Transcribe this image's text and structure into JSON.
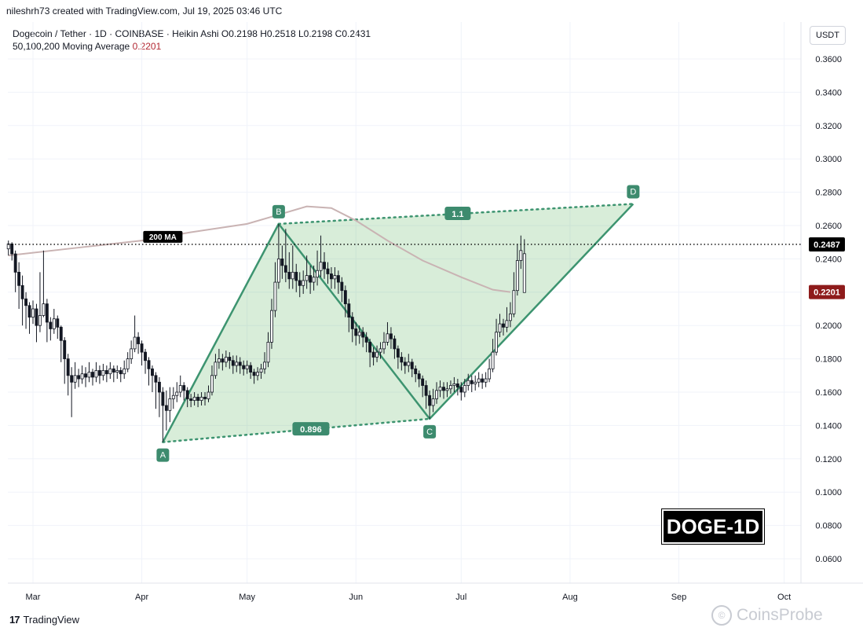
{
  "header": {
    "meta": "nileshrh73 created with TradingView.com, Jul 19, 2025 03:46 UTC",
    "symbol_line": "Dogecoin / Tether · 1D · COINBASE · Heikin Ashi",
    "ohlc": "O0.2198  H0.2518  L0.2198  C0.2431",
    "ma_label": "50,100,200 Moving Average",
    "ma_value": "0.2201",
    "currency": "USDT"
  },
  "badge": "DOGE-1D",
  "footer": {
    "logo_mark": "17",
    "logo_text": "TradingView"
  },
  "watermark": {
    "icon": "copyright-icon",
    "text": "CoinsProbe"
  },
  "colors": {
    "up": "#26a69a",
    "down": "#1e222d",
    "candle": "#131722",
    "pattern_fill": "rgba(76,175,80,0.22)",
    "pattern_line": "#3d9470",
    "ma": "#c9b3b3",
    "last_price_bg": "#000000",
    "ma_tag_bg": "#8e1b1b"
  },
  "chart_data": {
    "type": "candlestick",
    "title": "Dogecoin / Tether · 1D · COINBASE · Heikin Ashi",
    "ylim": [
      0.05,
      0.37
    ],
    "y_ticks": [
      "0.3600",
      "0.3400",
      "0.3200",
      "0.3000",
      "0.2800",
      "0.2600",
      "0.2400",
      "0.2200",
      "0.2000",
      "0.1800",
      "0.1600",
      "0.1400",
      "0.1200",
      "0.1000",
      "0.0800",
      "0.0600"
    ],
    "x_ticks": [
      "Mar",
      "Apr",
      "May",
      "Jun",
      "Jul",
      "Aug",
      "Sep",
      "Oct"
    ],
    "x_tick_dates": [
      "2025-03-01",
      "2025-04-01",
      "2025-05-01",
      "2025-06-01",
      "2025-07-01",
      "2025-08-01",
      "2025-09-01",
      "2025-10-01"
    ],
    "date_range": [
      "2025-02-22",
      "2025-10-05"
    ],
    "last_price": "0.2487",
    "last_price_value": 0.2487,
    "ma_tag": "0.2201",
    "ma_tag_value": 0.2201,
    "ma_line_label": "200 MA",
    "ma_200": [
      [
        "2025-02-22",
        0.242
      ],
      [
        "2025-03-15",
        0.247
      ],
      [
        "2025-04-01",
        0.251
      ],
      [
        "2025-04-15",
        0.256
      ],
      [
        "2025-05-01",
        0.261
      ],
      [
        "2025-05-10",
        0.2665
      ],
      [
        "2025-05-18",
        0.2715
      ],
      [
        "2025-05-25",
        0.2705
      ],
      [
        "2025-06-01",
        0.263
      ],
      [
        "2025-06-10",
        0.251
      ],
      [
        "2025-06-20",
        0.239
      ],
      [
        "2025-07-01",
        0.229
      ],
      [
        "2025-07-10",
        0.2215
      ],
      [
        "2025-07-15",
        0.2201
      ]
    ],
    "pattern": {
      "points": [
        {
          "label": "A",
          "date": "2025-04-07",
          "value": 0.13
        },
        {
          "label": "B",
          "date": "2025-05-10",
          "value": 0.261
        },
        {
          "label": "C",
          "date": "2025-06-22",
          "value": 0.144
        },
        {
          "label": "D",
          "date": "2025-08-19",
          "value": 0.273
        }
      ],
      "ratio_ac": "0.896",
      "ratio_bd": "1.1"
    },
    "candles": [
      [
        "2025-02-22",
        0.246,
        0.249,
        0.251,
        0.242
      ],
      [
        "2025-02-23",
        0.249,
        0.243,
        0.25,
        0.239
      ],
      [
        "2025-02-24",
        0.243,
        0.232,
        0.245,
        0.22
      ],
      [
        "2025-02-25",
        0.232,
        0.224,
        0.238,
        0.21
      ],
      [
        "2025-02-26",
        0.224,
        0.216,
        0.23,
        0.2
      ],
      [
        "2025-02-27",
        0.216,
        0.212,
        0.22,
        0.198
      ],
      [
        "2025-02-28",
        0.212,
        0.205,
        0.214,
        0.195
      ],
      [
        "2025-03-01",
        0.205,
        0.21,
        0.215,
        0.201
      ],
      [
        "2025-03-02",
        0.21,
        0.2,
        0.213,
        0.19
      ],
      [
        "2025-03-03",
        0.2,
        0.206,
        0.232,
        0.196
      ],
      [
        "2025-03-04",
        0.206,
        0.213,
        0.245,
        0.205
      ],
      [
        "2025-03-05",
        0.213,
        0.202,
        0.216,
        0.19
      ],
      [
        "2025-03-06",
        0.202,
        0.198,
        0.205,
        0.191
      ],
      [
        "2025-03-07",
        0.198,
        0.204,
        0.21,
        0.195
      ],
      [
        "2025-03-08",
        0.204,
        0.199,
        0.206,
        0.192
      ],
      [
        "2025-03-09",
        0.199,
        0.191,
        0.2,
        0.178
      ],
      [
        "2025-03-10",
        0.191,
        0.18,
        0.193,
        0.165
      ],
      [
        "2025-03-11",
        0.18,
        0.17,
        0.183,
        0.158
      ],
      [
        "2025-03-12",
        0.17,
        0.166,
        0.175,
        0.145
      ],
      [
        "2025-03-13",
        0.166,
        0.17,
        0.178,
        0.162
      ],
      [
        "2025-03-14",
        0.17,
        0.168,
        0.174,
        0.163
      ],
      [
        "2025-03-15",
        0.168,
        0.171,
        0.176,
        0.165
      ],
      [
        "2025-03-16",
        0.171,
        0.169,
        0.175,
        0.163
      ],
      [
        "2025-03-17",
        0.169,
        0.172,
        0.178,
        0.166
      ],
      [
        "2025-03-18",
        0.172,
        0.169,
        0.174,
        0.164
      ],
      [
        "2025-03-19",
        0.169,
        0.173,
        0.178,
        0.166
      ],
      [
        "2025-03-20",
        0.173,
        0.17,
        0.176,
        0.165
      ],
      [
        "2025-03-21",
        0.17,
        0.173,
        0.177,
        0.167
      ],
      [
        "2025-03-22",
        0.173,
        0.171,
        0.176,
        0.166
      ],
      [
        "2025-03-23",
        0.171,
        0.174,
        0.178,
        0.168
      ],
      [
        "2025-03-24",
        0.174,
        0.172,
        0.176,
        0.166
      ],
      [
        "2025-03-25",
        0.172,
        0.173,
        0.176,
        0.168
      ],
      [
        "2025-03-26",
        0.173,
        0.171,
        0.175,
        0.166
      ],
      [
        "2025-03-27",
        0.171,
        0.174,
        0.179,
        0.168
      ],
      [
        "2025-03-28",
        0.174,
        0.18,
        0.184,
        0.172
      ],
      [
        "2025-03-29",
        0.18,
        0.186,
        0.191,
        0.177
      ],
      [
        "2025-03-30",
        0.186,
        0.193,
        0.206,
        0.184
      ],
      [
        "2025-03-31",
        0.193,
        0.189,
        0.196,
        0.183
      ],
      [
        "2025-04-01",
        0.189,
        0.184,
        0.191,
        0.176
      ],
      [
        "2025-04-02",
        0.184,
        0.179,
        0.186,
        0.171
      ],
      [
        "2025-04-03",
        0.179,
        0.174,
        0.181,
        0.164
      ],
      [
        "2025-04-04",
        0.174,
        0.17,
        0.176,
        0.16
      ],
      [
        "2025-04-05",
        0.17,
        0.166,
        0.172,
        0.15
      ],
      [
        "2025-04-06",
        0.166,
        0.16,
        0.169,
        0.145
      ],
      [
        "2025-04-07",
        0.16,
        0.152,
        0.163,
        0.13
      ],
      [
        "2025-04-08",
        0.152,
        0.149,
        0.161,
        0.137
      ],
      [
        "2025-04-09",
        0.149,
        0.156,
        0.163,
        0.142
      ],
      [
        "2025-04-10",
        0.156,
        0.158,
        0.163,
        0.15
      ],
      [
        "2025-04-11",
        0.158,
        0.16,
        0.166,
        0.154
      ],
      [
        "2025-04-12",
        0.16,
        0.164,
        0.17,
        0.157
      ],
      [
        "2025-04-13",
        0.164,
        0.161,
        0.166,
        0.155
      ],
      [
        "2025-04-14",
        0.161,
        0.156,
        0.163,
        0.151
      ],
      [
        "2025-04-15",
        0.156,
        0.155,
        0.159,
        0.151
      ],
      [
        "2025-04-16",
        0.155,
        0.157,
        0.16,
        0.152
      ],
      [
        "2025-04-17",
        0.157,
        0.155,
        0.159,
        0.151
      ],
      [
        "2025-04-18",
        0.155,
        0.157,
        0.16,
        0.152
      ],
      [
        "2025-04-19",
        0.157,
        0.156,
        0.16,
        0.152
      ],
      [
        "2025-04-20",
        0.156,
        0.16,
        0.164,
        0.154
      ],
      [
        "2025-04-21",
        0.16,
        0.17,
        0.176,
        0.158
      ],
      [
        "2025-04-22",
        0.17,
        0.178,
        0.183,
        0.168
      ],
      [
        "2025-04-23",
        0.178,
        0.18,
        0.186,
        0.174
      ],
      [
        "2025-04-24",
        0.18,
        0.178,
        0.183,
        0.173
      ],
      [
        "2025-04-25",
        0.178,
        0.181,
        0.185,
        0.175
      ],
      [
        "2025-04-26",
        0.181,
        0.179,
        0.184,
        0.174
      ],
      [
        "2025-04-27",
        0.179,
        0.176,
        0.182,
        0.171
      ],
      [
        "2025-04-28",
        0.176,
        0.178,
        0.182,
        0.172
      ],
      [
        "2025-04-29",
        0.178,
        0.176,
        0.181,
        0.171
      ],
      [
        "2025-04-30",
        0.176,
        0.174,
        0.179,
        0.17
      ],
      [
        "2025-05-01",
        0.174,
        0.176,
        0.179,
        0.171
      ],
      [
        "2025-05-02",
        0.176,
        0.172,
        0.178,
        0.168
      ],
      [
        "2025-05-03",
        0.172,
        0.17,
        0.174,
        0.165
      ],
      [
        "2025-05-04",
        0.17,
        0.172,
        0.175,
        0.167
      ],
      [
        "2025-05-05",
        0.172,
        0.174,
        0.177,
        0.168
      ],
      [
        "2025-05-06",
        0.174,
        0.178,
        0.184,
        0.171
      ],
      [
        "2025-05-07",
        0.178,
        0.19,
        0.196,
        0.175
      ],
      [
        "2025-05-08",
        0.19,
        0.209,
        0.216,
        0.186
      ],
      [
        "2025-05-09",
        0.209,
        0.226,
        0.238,
        0.205
      ],
      [
        "2025-05-10",
        0.226,
        0.24,
        0.261,
        0.222
      ],
      [
        "2025-05-11",
        0.24,
        0.236,
        0.248,
        0.228
      ],
      [
        "2025-05-12",
        0.236,
        0.232,
        0.258,
        0.226
      ],
      [
        "2025-05-13",
        0.232,
        0.228,
        0.244,
        0.222
      ],
      [
        "2025-05-14",
        0.228,
        0.232,
        0.248,
        0.222
      ],
      [
        "2025-05-15",
        0.232,
        0.227,
        0.237,
        0.22
      ],
      [
        "2025-05-16",
        0.227,
        0.224,
        0.232,
        0.217
      ],
      [
        "2025-05-17",
        0.224,
        0.227,
        0.233,
        0.219
      ],
      [
        "2025-05-18",
        0.227,
        0.23,
        0.242,
        0.222
      ],
      [
        "2025-05-19",
        0.23,
        0.226,
        0.236,
        0.219
      ],
      [
        "2025-05-20",
        0.226,
        0.229,
        0.236,
        0.221
      ],
      [
        "2025-05-21",
        0.229,
        0.233,
        0.245,
        0.224
      ],
      [
        "2025-05-22",
        0.233,
        0.238,
        0.254,
        0.229
      ],
      [
        "2025-05-23",
        0.238,
        0.234,
        0.244,
        0.228
      ],
      [
        "2025-05-24",
        0.234,
        0.231,
        0.238,
        0.225
      ],
      [
        "2025-05-25",
        0.231,
        0.228,
        0.235,
        0.222
      ],
      [
        "2025-05-26",
        0.228,
        0.23,
        0.235,
        0.222
      ],
      [
        "2025-05-27",
        0.23,
        0.226,
        0.233,
        0.219
      ],
      [
        "2025-05-28",
        0.226,
        0.221,
        0.229,
        0.214
      ],
      [
        "2025-05-29",
        0.221,
        0.213,
        0.224,
        0.205
      ],
      [
        "2025-05-30",
        0.213,
        0.205,
        0.216,
        0.196
      ],
      [
        "2025-05-31",
        0.205,
        0.198,
        0.208,
        0.19
      ],
      [
        "2025-06-01",
        0.198,
        0.194,
        0.202,
        0.188
      ],
      [
        "2025-06-02",
        0.194,
        0.196,
        0.2,
        0.189
      ],
      [
        "2025-06-03",
        0.196,
        0.193,
        0.199,
        0.187
      ],
      [
        "2025-06-04",
        0.193,
        0.19,
        0.196,
        0.184
      ],
      [
        "2025-06-05",
        0.19,
        0.184,
        0.192,
        0.175
      ],
      [
        "2025-06-06",
        0.184,
        0.181,
        0.187,
        0.176
      ],
      [
        "2025-06-07",
        0.181,
        0.184,
        0.188,
        0.178
      ],
      [
        "2025-06-08",
        0.184,
        0.186,
        0.19,
        0.18
      ],
      [
        "2025-06-09",
        0.186,
        0.19,
        0.196,
        0.183
      ],
      [
        "2025-06-10",
        0.19,
        0.195,
        0.202,
        0.188
      ],
      [
        "2025-06-11",
        0.195,
        0.192,
        0.199,
        0.186
      ],
      [
        "2025-06-12",
        0.192,
        0.186,
        0.194,
        0.18
      ],
      [
        "2025-06-13",
        0.186,
        0.181,
        0.188,
        0.174
      ],
      [
        "2025-06-14",
        0.181,
        0.178,
        0.184,
        0.173
      ],
      [
        "2025-06-15",
        0.178,
        0.176,
        0.181,
        0.171
      ],
      [
        "2025-06-16",
        0.176,
        0.178,
        0.183,
        0.172
      ],
      [
        "2025-06-17",
        0.178,
        0.174,
        0.18,
        0.169
      ],
      [
        "2025-06-18",
        0.174,
        0.171,
        0.176,
        0.166
      ],
      [
        "2025-06-19",
        0.171,
        0.168,
        0.173,
        0.163
      ],
      [
        "2025-06-20",
        0.168,
        0.164,
        0.17,
        0.157
      ],
      [
        "2025-06-21",
        0.164,
        0.158,
        0.167,
        0.15
      ],
      [
        "2025-06-22",
        0.158,
        0.152,
        0.161,
        0.144
      ],
      [
        "2025-06-23",
        0.152,
        0.156,
        0.162,
        0.148
      ],
      [
        "2025-06-24",
        0.156,
        0.161,
        0.166,
        0.153
      ],
      [
        "2025-06-25",
        0.161,
        0.163,
        0.167,
        0.157
      ],
      [
        "2025-06-26",
        0.163,
        0.161,
        0.166,
        0.156
      ],
      [
        "2025-06-27",
        0.161,
        0.162,
        0.166,
        0.157
      ],
      [
        "2025-06-28",
        0.162,
        0.164,
        0.167,
        0.159
      ],
      [
        "2025-06-29",
        0.164,
        0.165,
        0.169,
        0.16
      ],
      [
        "2025-06-30",
        0.165,
        0.163,
        0.168,
        0.158
      ],
      [
        "2025-07-01",
        0.163,
        0.16,
        0.166,
        0.155
      ],
      [
        "2025-07-02",
        0.16,
        0.164,
        0.168,
        0.157
      ],
      [
        "2025-07-03",
        0.164,
        0.167,
        0.171,
        0.161
      ],
      [
        "2025-07-04",
        0.167,
        0.165,
        0.17,
        0.16
      ],
      [
        "2025-07-05",
        0.165,
        0.166,
        0.17,
        0.161
      ],
      [
        "2025-07-06",
        0.166,
        0.168,
        0.172,
        0.163
      ],
      [
        "2025-07-07",
        0.168,
        0.166,
        0.171,
        0.162
      ],
      [
        "2025-07-08",
        0.166,
        0.168,
        0.172,
        0.163
      ],
      [
        "2025-07-09",
        0.168,
        0.174,
        0.18,
        0.166
      ],
      [
        "2025-07-10",
        0.174,
        0.184,
        0.192,
        0.172
      ],
      [
        "2025-07-11",
        0.184,
        0.196,
        0.204,
        0.182
      ],
      [
        "2025-07-12",
        0.196,
        0.201,
        0.207,
        0.193
      ],
      [
        "2025-07-13",
        0.201,
        0.199,
        0.204,
        0.194
      ],
      [
        "2025-07-14",
        0.199,
        0.203,
        0.211,
        0.196
      ],
      [
        "2025-07-15",
        0.203,
        0.207,
        0.214,
        0.199
      ],
      [
        "2025-07-16",
        0.207,
        0.221,
        0.232,
        0.205
      ],
      [
        "2025-07-17",
        0.221,
        0.239,
        0.249,
        0.218
      ],
      [
        "2025-07-18",
        0.239,
        0.245,
        0.254,
        0.234
      ],
      [
        "2025-07-19",
        0.2198,
        0.2431,
        0.2518,
        0.2198
      ]
    ]
  }
}
